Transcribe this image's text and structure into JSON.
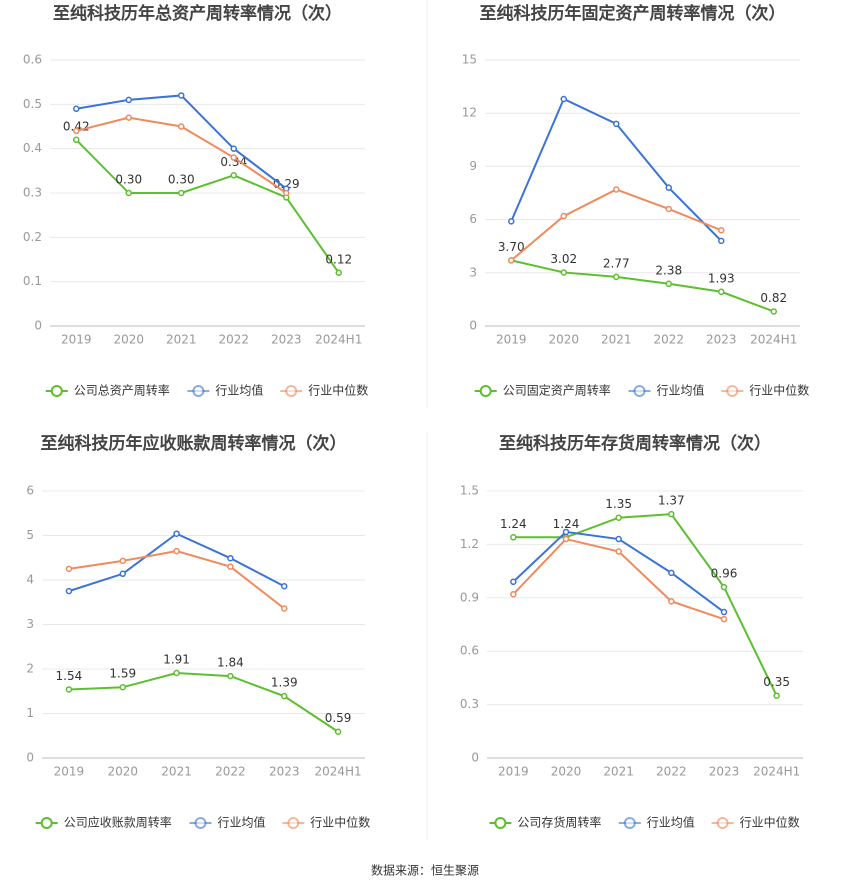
{
  "chart_data": [
    {
      "type": "line",
      "title": "至纯科技历年总资产周转率情况（次）",
      "categories": [
        "2019",
        "2020",
        "2021",
        "2022",
        "2023",
        "2024H1"
      ],
      "series": [
        {
          "name": "公司总资产周转率",
          "color": "#5cbf30",
          "values": [
            0.42,
            0.3,
            0.3,
            0.34,
            0.29,
            0.12
          ],
          "value_labels": [
            "0.42",
            "0.30",
            "0.30",
            "0.34",
            "0.29",
            "0.12"
          ]
        },
        {
          "name": "行业均值",
          "color": "#3b74d6",
          "values": [
            0.49,
            0.51,
            0.52,
            0.4,
            0.31,
            null
          ]
        },
        {
          "name": "行业中位数",
          "color": "#f08a5c",
          "values": [
            0.44,
            0.47,
            0.45,
            0.38,
            0.3,
            null
          ]
        }
      ],
      "ylim": [
        0,
        0.6
      ],
      "yticks": [
        0,
        0.1,
        0.2,
        0.3,
        0.4,
        0.5,
        0.6
      ],
      "grid": true,
      "legend": "bottom"
    },
    {
      "type": "line",
      "title": "至纯科技历年固定资产周转率情况（次）",
      "categories": [
        "2019",
        "2020",
        "2021",
        "2022",
        "2023",
        "2024H1"
      ],
      "series": [
        {
          "name": "公司固定资产周转率",
          "color": "#5cbf30",
          "values": [
            3.7,
            3.02,
            2.77,
            2.38,
            1.93,
            0.82
          ],
          "value_labels": [
            "3.70",
            "3.02",
            "2.77",
            "2.38",
            "1.93",
            "0.82"
          ]
        },
        {
          "name": "行业均值",
          "color": "#3b74d6",
          "values": [
            5.9,
            12.8,
            11.4,
            7.8,
            4.8,
            null
          ]
        },
        {
          "name": "行业中位数",
          "color": "#f08a5c",
          "values": [
            3.7,
            6.2,
            7.7,
            6.6,
            5.4,
            null
          ]
        }
      ],
      "ylim": [
        0,
        15
      ],
      "yticks": [
        0,
        3,
        6,
        9,
        12,
        15
      ],
      "grid": true,
      "legend": "bottom"
    },
    {
      "type": "line",
      "title": "至纯科技历年应收账款周转率情况（次）",
      "categories": [
        "2019",
        "2020",
        "2021",
        "2022",
        "2023",
        "2024H1"
      ],
      "series": [
        {
          "name": "公司应收账款周转率",
          "color": "#5cbf30",
          "values": [
            1.54,
            1.59,
            1.91,
            1.84,
            1.39,
            0.59
          ],
          "value_labels": [
            "1.54",
            "1.59",
            "1.91",
            "1.84",
            "1.39",
            "0.59"
          ]
        },
        {
          "name": "行业均值",
          "color": "#3b74d6",
          "values": [
            3.75,
            4.14,
            5.04,
            4.49,
            3.86,
            null
          ]
        },
        {
          "name": "行业中位数",
          "color": "#f08a5c",
          "values": [
            4.25,
            4.43,
            4.65,
            4.3,
            3.36,
            null
          ]
        }
      ],
      "ylim": [
        0,
        6
      ],
      "yticks": [
        0,
        1,
        2,
        3,
        4,
        5,
        6
      ],
      "grid": true,
      "legend": "bottom"
    },
    {
      "type": "line",
      "title": "至纯科技历年存货周转率情况（次）",
      "categories": [
        "2019",
        "2020",
        "2021",
        "2022",
        "2023",
        "2024H1"
      ],
      "series": [
        {
          "name": "公司存货周转率",
          "color": "#5cbf30",
          "values": [
            1.24,
            1.24,
            1.35,
            1.37,
            0.96,
            0.35
          ],
          "value_labels": [
            "1.24",
            "1.24",
            "1.35",
            "1.37",
            "0.96",
            "0.35"
          ]
        },
        {
          "name": "行业均值",
          "color": "#3b74d6",
          "values": [
            0.99,
            1.27,
            1.23,
            1.04,
            0.82,
            null
          ]
        },
        {
          "name": "行业中位数",
          "color": "#f08a5c",
          "values": [
            0.92,
            1.23,
            1.16,
            0.88,
            0.78,
            null
          ]
        }
      ],
      "ylim": [
        0,
        1.5
      ],
      "yticks": [
        0,
        0.3,
        0.6,
        0.9,
        1.2,
        1.5
      ],
      "grid": true,
      "legend": "bottom"
    }
  ],
  "source": "数据来源：恒生聚源"
}
